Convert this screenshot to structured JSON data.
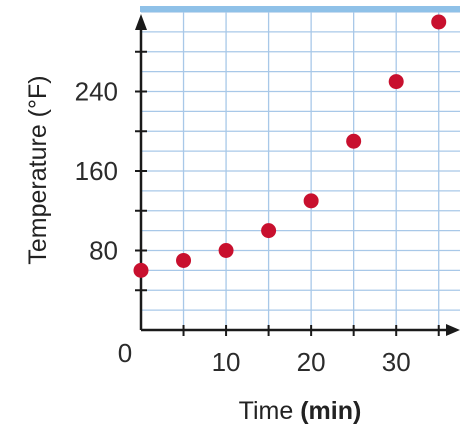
{
  "chart_data": {
    "type": "scatter",
    "xlabel": "Time",
    "xlabel_unit": "(min)",
    "ylabel": "Temperature",
    "ylabel_unit": "(°F)",
    "x_ticks": [
      "10",
      "20",
      "30"
    ],
    "y_ticks": [
      "80",
      "160",
      "240"
    ],
    "origin_label": "0",
    "xlim": [
      0,
      37.5
    ],
    "ylim": [
      0,
      320
    ],
    "grid": true,
    "series": [
      {
        "points": [
          {
            "x": 0,
            "y": 60
          },
          {
            "x": 5,
            "y": 70
          },
          {
            "x": 10,
            "y": 80
          },
          {
            "x": 15,
            "y": 100
          },
          {
            "x": 20,
            "y": 130
          },
          {
            "x": 25,
            "y": 190
          },
          {
            "x": 30,
            "y": 250
          },
          {
            "x": 35,
            "y": 310
          }
        ]
      }
    ],
    "colors": {
      "grid": "#a8c8e8",
      "top_border": "#8fc1e8",
      "axis": "#1a1a1a",
      "point": "#c8102e"
    }
  }
}
